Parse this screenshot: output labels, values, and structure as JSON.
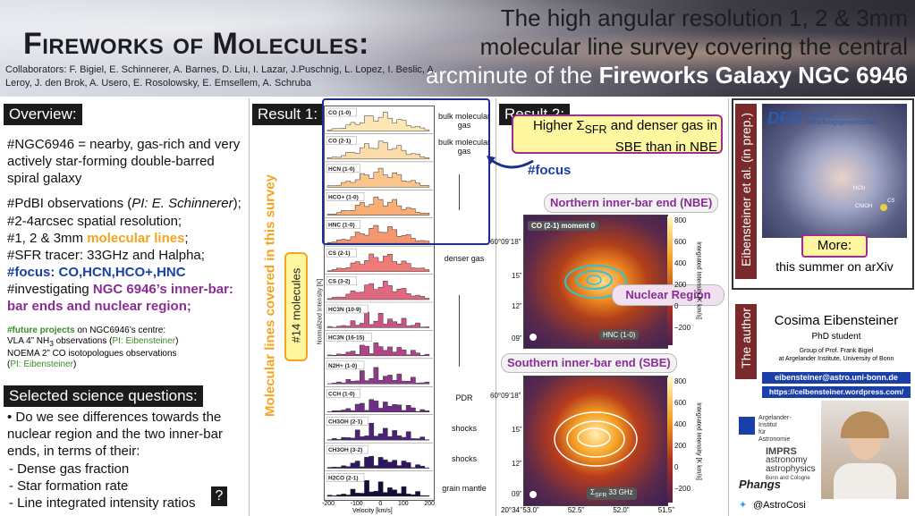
{
  "header": {
    "title": "Fireworks of Molecules:",
    "subtitle_line1": "The high angular resolution 1, 2 & 3mm",
    "subtitle_line2": "molecular line survey covering the central",
    "subtitle_line3a": "arcminute of the ",
    "subtitle_line3b": "Fireworks Galaxy NGC 6946",
    "collaborators": "Collaborators:  F. Bigiel, E. Schinnerer, A. Barnes, D. Liu, I. Lazar, J.Puschnig, L. Lopez, I. Beslic, A. Leroy, J. den Brok, A. Usero, E. Rosolowsky, E. Emsellem, A. Schruba"
  },
  "overview": {
    "heading": "Overview:",
    "p1": "#NGC6946 =  nearby, gas-rich and very actively star-forming double-barred spiral galaxy",
    "p2a": "#PdBI observations (",
    "p2b": "PI: E. Schinnerer",
    "p2c": ");",
    "p3": "#2-4arcsec spatial resolution;",
    "p4a": "#1, 2 & 3mm ",
    "p4b": "molecular lines",
    "p4c": ";",
    "p5": "#SFR tracer: 33GHz and Halpha;",
    "p6": "#focus: CO,HCN,HCO+,HNC",
    "p7a": "#investigating ",
    "p7b": "NGC 6946’s inner-bar: bar ends and nuclear region;",
    "future_a": "#future projects",
    "future_b": " on NGC6946’s centre:",
    "future_l1a": "VLA 4” NH",
    "future_l1sub": "3",
    "future_l1b": " observations (",
    "future_l1c": "PI: Eibensteiner",
    "future_l1d": ")",
    "future_l2": "NOEMA 2” CO isotopologues observations",
    "future_l3a": "(",
    "future_l3b": "PI: Eibensteiner",
    "future_l3c": ")"
  },
  "questions": {
    "heading": "Selected science questions:",
    "q_intro": "Do we see differences towards the nuclear region and the two inner-bar ends, in terms of their:",
    "items": [
      "- Dense gas fraction",
      "- Star formation rate",
      "- Line integrated intensity ratios"
    ],
    "qmark": "?"
  },
  "result1": {
    "heading": "Result 1:",
    "vertical": "Molecular lines covered in this survey",
    "count": "#14 molecules",
    "ylabel": "Normalized Intensity [K]",
    "xlabel": "Velocity [km/s]",
    "xticks": [
      "-200",
      "-100",
      "0",
      "100",
      "200"
    ],
    "lines": [
      {
        "label": "CO (1-0)",
        "color": "#fde7b5"
      },
      {
        "label": "CO (2-1)",
        "color": "#fcdcaa"
      },
      {
        "label": "HCN (1-0)",
        "color": "#fac48a"
      },
      {
        "label": "HCO+ (1-0)",
        "color": "#f8ae74"
      },
      {
        "label": "HNC (1-0)",
        "color": "#f49670"
      },
      {
        "label": "CS (2-1)",
        "color": "#ee7b78"
      },
      {
        "label": "CS (3-2)",
        "color": "#e06880"
      },
      {
        "label": "HC3N (10-9)",
        "color": "#c85488"
      },
      {
        "label": "HC3N (16-15)",
        "color": "#b0468a"
      },
      {
        "label": "N2H+ (1-0)",
        "color": "#8e3a8c"
      },
      {
        "label": "CCH (1-0)",
        "color": "#6e2e86"
      },
      {
        "label": "CH3OH (2-1)",
        "color": "#4a2276"
      },
      {
        "label": "CH3OH (3-2)",
        "color": "#2e1660"
      },
      {
        "label": "H2CO (2-1)",
        "color": "#160c3a"
      }
    ],
    "annotations": {
      "bulk1": "bulk molecular gas",
      "bulk2": "bulk molecular gas",
      "dense": "denser gas",
      "pdr": "PDR",
      "shocks1": "shocks",
      "shocks2": "shocks",
      "grain": "grain mantle"
    }
  },
  "result2": {
    "heading": "Result 2:",
    "callout_a": "Higher Σ",
    "callout_sub": "SFR",
    "callout_b": " and denser gas in SBE than in NBE",
    "focus": "#focus",
    "nbe": "Northern inner-bar end (NBE)",
    "sbe": "Southern inner-bar end (SBE)",
    "nuclear": "Nuclear Region",
    "map_label": "CO (2-1) moment 0",
    "hnc_legend": "HNC (1-0)",
    "sfr_legend": "Σ",
    "sfr_sub": "SFR",
    "sfr_tail": " 33 GHz",
    "cbar_label": "Integrated Intensity [K km/s]",
    "cbar_ticks": [
      "800",
      "600",
      "400",
      "200",
      "0",
      "−200"
    ],
    "dec_ticks": [
      "60°09’18”",
      "15”",
      "12”",
      "09”"
    ],
    "ra_ticks": [
      "20°34’’53.0”",
      "52.5”",
      "52.0”",
      "51.5”"
    ]
  },
  "arxiv": {
    "vertical": "Eibensteiner et al. (in prep.)",
    "dfg": "DFG",
    "dfg_text": "Deutsche Forschungsgemeinschaft",
    "map_labels": [
      "HCN",
      "CNIOH",
      "CS"
    ],
    "more": "More:",
    "summer": "this summer on arXiv"
  },
  "author": {
    "vertical": "The author",
    "name": "Cosima Eibensteiner",
    "role": "PhD student",
    "group1": "Group of Prof. Frank Bigiel",
    "group2": "at Argelander Institute, University of Bonn",
    "email": "eibensteiner@astro.uni-bonn.de",
    "site": "https://celbensteiner.wordpress.com/",
    "inst1": "Argelander-",
    "inst2": "Institut",
    "inst3": "für",
    "inst4": "Astronomie",
    "imprs1": "IMPRS",
    "imprs2": "astronomy",
    "imprs3": "astrophysics",
    "imprs4": "Bonn and Cologne",
    "phangs": "Phangs",
    "twitter": "@AstroCosi"
  },
  "colors": {
    "orange": "#f5a41d",
    "blue": "#1b3fa8",
    "purple": "#8a2e96",
    "green": "#3a8a2a",
    "dark_red": "#7a2a2a"
  }
}
